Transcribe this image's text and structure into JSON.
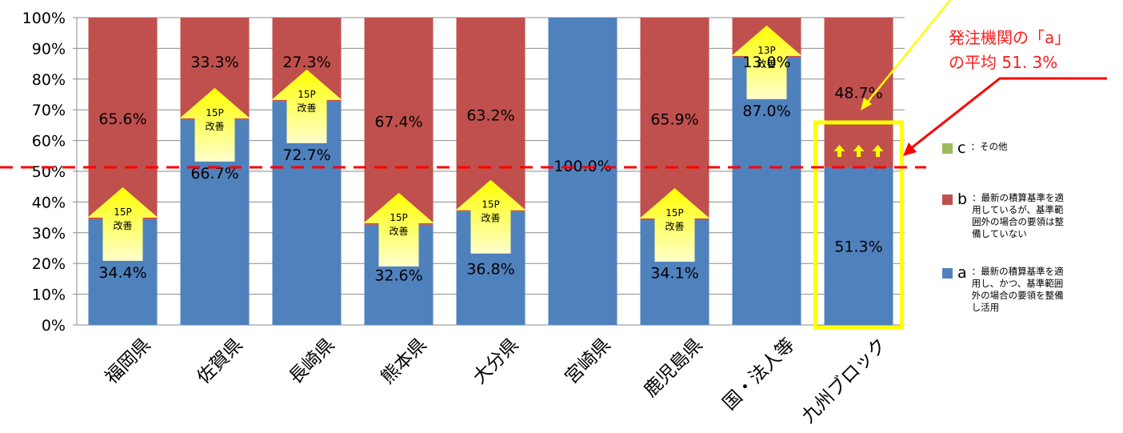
{
  "chart_data": {
    "type": "bar",
    "stacked": true,
    "categories": [
      "福岡県",
      "佐賀県",
      "長崎県",
      "熊本県",
      "大分県",
      "宮崎県",
      "鹿児島県",
      "国・法人等",
      "九州ブロック"
    ],
    "series": [
      {
        "name": "a",
        "values": [
          34.4,
          66.7,
          72.7,
          32.6,
          36.8,
          100.0,
          34.1,
          87.0,
          51.3
        ],
        "color": "#4f81bd"
      },
      {
        "name": "b",
        "values": [
          65.6,
          33.3,
          27.3,
          67.4,
          63.2,
          0.0,
          65.9,
          13.0,
          48.7
        ],
        "color": "#c0504d"
      },
      {
        "name": "c",
        "values": [
          0,
          0,
          0,
          0,
          0,
          0,
          0,
          0,
          0
        ],
        "color": "#9bbb59"
      }
    ],
    "a_labels": [
      "34.4%",
      "66.7%",
      "72.7%",
      "32.6%",
      "36.8%",
      "100.0%",
      "34.1%",
      "87.0%",
      "51.3%"
    ],
    "b_labels": [
      "65.6%",
      "33.3%",
      "27.3%",
      "67.4%",
      "63.2%",
      "",
      "65.9%",
      "13.0%",
      "48.7%"
    ],
    "ylim": [
      0,
      100
    ],
    "yticks": [
      "0%",
      "10%",
      "20%",
      "30%",
      "40%",
      "50%",
      "60%",
      "70%",
      "80%",
      "90%",
      "100%"
    ],
    "grid": true,
    "legend_position": "right",
    "average_line_value": 51.3,
    "improvement_arrows": [
      {
        "category": "福岡県",
        "value": 34.4,
        "line1": "15P",
        "line2": "改善"
      },
      {
        "category": "佐賀県",
        "value": 66.7,
        "line1": "15P",
        "line2": "改善"
      },
      {
        "category": "長崎県",
        "value": 72.7,
        "line1": "15P",
        "line2": "改善"
      },
      {
        "category": "熊本県",
        "value": 32.6,
        "line1": "15P",
        "line2": "改善"
      },
      {
        "category": "大分県",
        "value": 36.8,
        "line1": "15P",
        "line2": "改善"
      },
      {
        "category": "鹿児島県",
        "value": 34.1,
        "line1": "15P",
        "line2": "改善"
      },
      {
        "category": "国・法人等",
        "value": 87.0,
        "line1": "13P",
        "line2": "改善"
      }
    ],
    "highlight_category": "九州ブロック"
  },
  "legend": [
    {
      "key": "c",
      "desc": "：その他",
      "color": "#9bbb59"
    },
    {
      "key": "b",
      "desc": "：最新の積算基準を適用しているが、基準範囲外の場合の要領は整備していない",
      "color": "#c0504d"
    },
    {
      "key": "a",
      "desc": "：最新の積算基準を適用し、かつ、基準範囲外の場合の要領を整備し活用",
      "color": "#4f81bd"
    }
  ],
  "annotation": {
    "text": "発注機関の「a」\nの平均 51. 3%"
  },
  "colors": {
    "a": "#4f81bd",
    "b": "#c0504d",
    "c": "#9bbb59",
    "average_line": "#ff0000",
    "highlight_box": "#ffff00",
    "arrow": "#ffff00"
  }
}
